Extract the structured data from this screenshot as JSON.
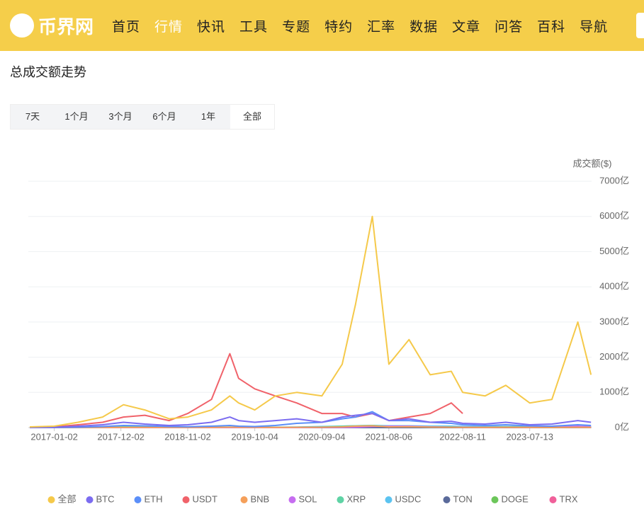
{
  "header": {
    "logo": "币界网",
    "nav": [
      "首页",
      "行情",
      "快讯",
      "工具",
      "专题",
      "特约",
      "汇率",
      "数据",
      "文章",
      "问答",
      "百科",
      "导航"
    ]
  },
  "section": {
    "title": "总成交额走势"
  },
  "tabs": {
    "items": [
      "7天",
      "1个月",
      "3个月",
      "6个月",
      "1年",
      "全部"
    ]
  },
  "chart_data": {
    "type": "line",
    "y_axis_title": "成交额($)",
    "x": [
      "2016-09-01",
      "2017-01-02",
      "2017-05-01",
      "2017-09-01",
      "2017-12-15",
      "2018-04-01",
      "2018-08-01",
      "2018-11-02",
      "2019-03-01",
      "2019-06-01",
      "2019-07-15",
      "2019-10-04",
      "2020-01-15",
      "2020-05-01",
      "2020-09-04",
      "2020-12-15",
      "2021-02-20",
      "2021-05-15",
      "2021-08-06",
      "2021-11-15",
      "2022-03-01",
      "2022-06-15",
      "2022-08-11",
      "2022-12-01",
      "2023-03-15",
      "2023-07-13",
      "2023-11-01",
      "2024-03-10",
      "2024-05-15"
    ],
    "xlim": [
      "2016-08-25",
      "2024-05-18"
    ],
    "xticks": [
      "2017-01-02",
      "2017-12-02",
      "2018-11-02",
      "2019-10-04",
      "2020-09-04",
      "2021-08-06",
      "2022-08-11",
      "2023-07-13"
    ],
    "ylim": [
      0,
      7000
    ],
    "yticks": [
      {
        "value": 0,
        "label": "0亿"
      },
      {
        "value": 1000,
        "label": "1000亿"
      },
      {
        "value": 2000,
        "label": "2000亿"
      },
      {
        "value": 3000,
        "label": "3000亿"
      },
      {
        "value": 4000,
        "label": "4000亿"
      },
      {
        "value": 5000,
        "label": "5000亿"
      },
      {
        "value": 6000,
        "label": "6000亿"
      },
      {
        "value": 7000,
        "label": "7000亿"
      }
    ],
    "grid": true,
    "series": [
      {
        "name": "全部",
        "color": "#f5c94a",
        "values": [
          20,
          40,
          150,
          300,
          650,
          500,
          250,
          300,
          500,
          900,
          700,
          500,
          900,
          1000,
          900,
          1800,
          3500,
          6000,
          1800,
          2500,
          1500,
          1600,
          1000,
          900,
          1200,
          700,
          800,
          3000,
          1500
        ]
      },
      {
        "name": "BTC",
        "color": "#7b6cf0",
        "values": [
          5,
          10,
          40,
          80,
          150,
          100,
          60,
          80,
          150,
          300,
          200,
          150,
          200,
          250,
          150,
          300,
          350,
          400,
          200,
          250,
          150,
          180,
          120,
          100,
          150,
          80,
          100,
          200,
          150
        ]
      },
      {
        "name": "ETH",
        "color": "#5b8ff9",
        "values": [
          2,
          3,
          10,
          30,
          60,
          50,
          30,
          25,
          40,
          60,
          40,
          30,
          60,
          120,
          150,
          250,
          300,
          450,
          200,
          200,
          150,
          120,
          80,
          60,
          80,
          50,
          40,
          80,
          60
        ]
      },
      {
        "name": "USDT",
        "color": "#f0626a",
        "values": [
          10,
          20,
          80,
          150,
          300,
          350,
          200,
          400,
          800,
          2100,
          1400,
          1100,
          900,
          700,
          400,
          400,
          300,
          400,
          200,
          300,
          400,
          700,
          400,
          null,
          null,
          null,
          null,
          null,
          null
        ]
      },
      {
        "name": "BNB",
        "color": "#f5a05a",
        "values": [
          0,
          0,
          1,
          2,
          5,
          5,
          3,
          3,
          5,
          10,
          8,
          5,
          5,
          8,
          10,
          20,
          40,
          50,
          20,
          25,
          15,
          10,
          8,
          6,
          8,
          5,
          5,
          10,
          8
        ]
      },
      {
        "name": "SOL",
        "color": "#c66df0",
        "values": [
          0,
          0,
          0,
          0,
          0,
          0,
          0,
          0,
          0,
          0,
          0,
          0,
          0,
          1,
          5,
          5,
          10,
          30,
          40,
          40,
          20,
          10,
          8,
          5,
          8,
          5,
          15,
          40,
          20
        ]
      },
      {
        "name": "XRP",
        "color": "#5fd3a5",
        "values": [
          1,
          1,
          5,
          10,
          40,
          20,
          10,
          15,
          10,
          15,
          10,
          8,
          10,
          10,
          15,
          40,
          50,
          60,
          30,
          25,
          15,
          15,
          10,
          15,
          20,
          30,
          20,
          30,
          20
        ]
      },
      {
        "name": "USDC",
        "color": "#5bc3f0",
        "values": [
          0,
          0,
          0,
          0,
          0,
          1,
          2,
          3,
          5,
          10,
          8,
          8,
          10,
          15,
          30,
          40,
          50,
          60,
          50,
          50,
          40,
          40,
          30,
          25,
          30,
          20,
          20,
          30,
          30
        ]
      },
      {
        "name": "TON",
        "color": "#5a6a9a",
        "values": [
          0,
          0,
          0,
          0,
          0,
          0,
          0,
          0,
          0,
          0,
          0,
          0,
          0,
          0,
          0,
          0,
          0,
          0,
          0,
          0,
          0,
          1,
          1,
          1,
          1,
          1,
          2,
          5,
          5
        ]
      },
      {
        "name": "DOGE",
        "color": "#6cc65a",
        "values": [
          0,
          0,
          0,
          1,
          2,
          2,
          1,
          1,
          1,
          2,
          1,
          1,
          1,
          2,
          3,
          5,
          30,
          60,
          15,
          15,
          8,
          5,
          5,
          10,
          5,
          3,
          5,
          20,
          10
        ]
      },
      {
        "name": "TRX",
        "color": "#f0609a",
        "values": [
          0,
          0,
          0,
          0,
          5,
          8,
          3,
          2,
          3,
          5,
          3,
          2,
          3,
          4,
          5,
          8,
          10,
          15,
          8,
          8,
          6,
          5,
          4,
          3,
          4,
          3,
          3,
          5,
          4
        ]
      }
    ]
  }
}
